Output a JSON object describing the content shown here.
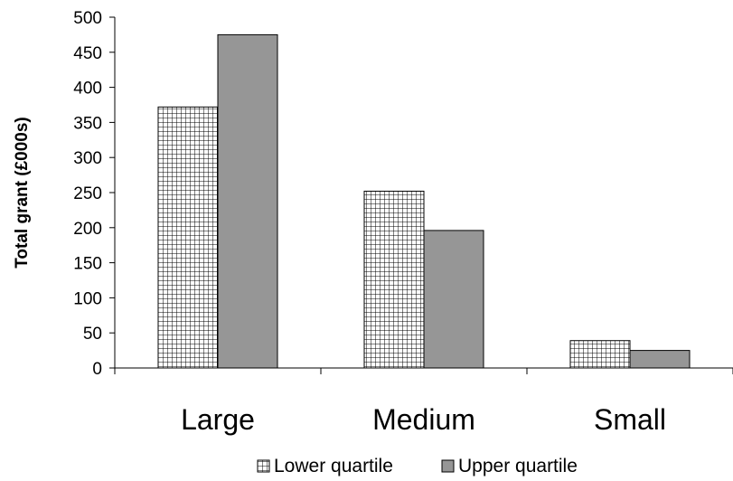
{
  "chart_data": {
    "type": "bar",
    "title": "",
    "xlabel": "",
    "ylabel": "Total grant (£000s)",
    "categories": [
      "Large",
      "Medium",
      "Small"
    ],
    "series": [
      {
        "name": "Lower quartile",
        "values": [
          372,
          252,
          39
        ],
        "color": "#ffffff",
        "pattern": "grid"
      },
      {
        "name": "Upper quartile",
        "values": [
          475,
          196,
          25
        ],
        "color": "#969696",
        "pattern": "solid"
      }
    ],
    "ylim": [
      0,
      500
    ],
    "yticks": [
      0,
      50,
      100,
      150,
      200,
      250,
      300,
      350,
      400,
      450,
      500
    ],
    "grid": false,
    "legend_position": "bottom-center"
  }
}
